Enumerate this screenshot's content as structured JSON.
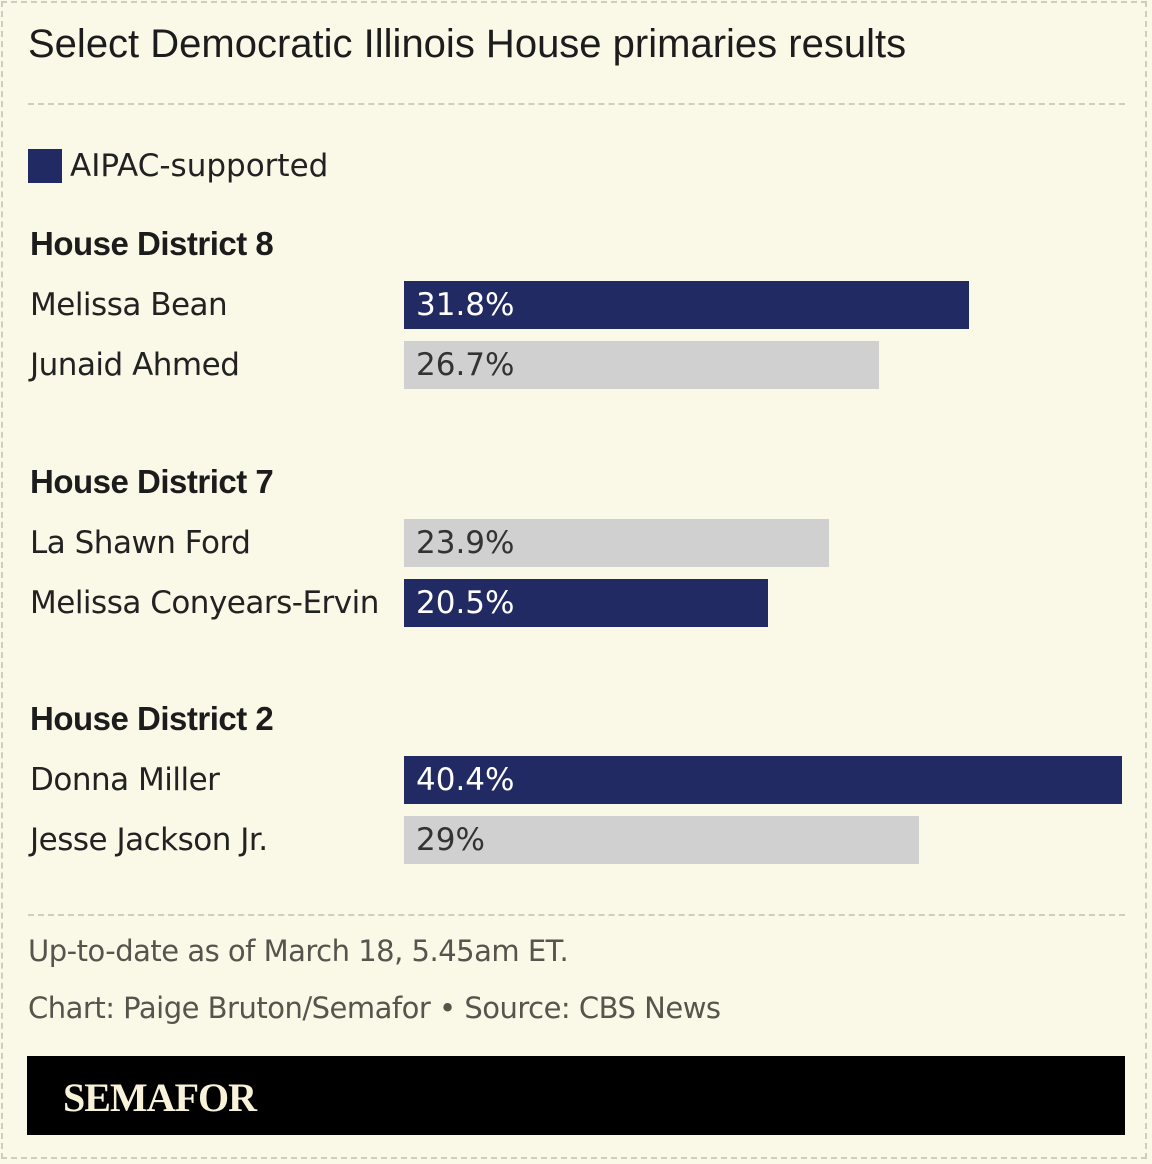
{
  "colors": {
    "aipac": "#222a63",
    "other": "#d0d0d0",
    "background": "#faf8e6"
  },
  "chart_data": {
    "type": "bar",
    "orientation": "horizontal",
    "title": "Select Democratic Illinois House primaries results",
    "legend": [
      {
        "label": "AIPAC-supported",
        "color": "#222a63"
      }
    ],
    "legend_position": "top-left",
    "unit": "%",
    "xlim": [
      0,
      40.4
    ],
    "grid": false,
    "groups": [
      {
        "name": "House District 8",
        "candidates": [
          {
            "name": "Melissa Bean",
            "value": 31.8,
            "label": "31.8%",
            "aipac": true
          },
          {
            "name": "Junaid Ahmed",
            "value": 26.7,
            "label": "26.7%",
            "aipac": false
          }
        ]
      },
      {
        "name": "House District 7",
        "candidates": [
          {
            "name": "La Shawn Ford",
            "value": 23.9,
            "label": "23.9%",
            "aipac": false
          },
          {
            "name": "Melissa Conyears-Ervin",
            "value": 20.5,
            "label": "20.5%",
            "aipac": true
          }
        ]
      },
      {
        "name": "House District 2",
        "candidates": [
          {
            "name": "Donna Miller",
            "value": 40.4,
            "label": "40.4%",
            "aipac": true
          },
          {
            "name": "Jesse Jackson Jr.",
            "value": 29,
            "label": "29%",
            "aipac": false
          }
        ]
      }
    ]
  },
  "footer": {
    "note": "Up-to-date as of March 18, 5.45am ET.",
    "credit": "Chart: Paige Bruton/Semafor • Source: CBS News"
  },
  "brand": "SEMAFOR"
}
